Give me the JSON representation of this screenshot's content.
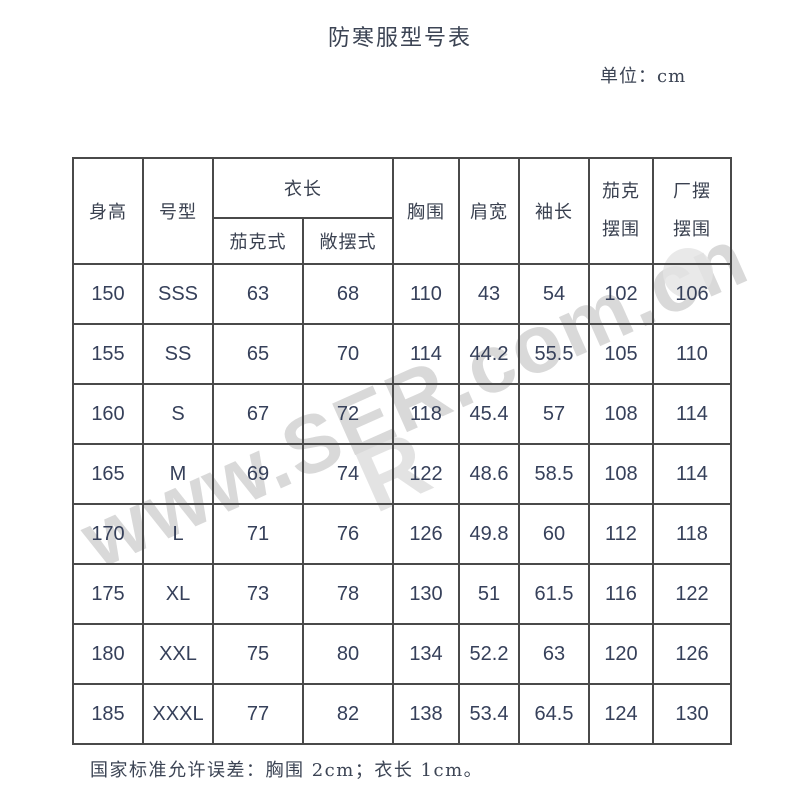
{
  "document": {
    "title": "防寒服型号表",
    "unit_note": "单位：cm",
    "footnote": "国家标准允许误差：胸围 2cm；衣长 1cm。"
  },
  "watermark": {
    "text": "www.SER.com.cn",
    "fragment": "R",
    "color": "#d3d3d3"
  },
  "table": {
    "headers": {
      "height": "身高",
      "model": "号型",
      "garment_length": "衣长",
      "jacket_style": "茄克式",
      "open_hem_style": "敞摆式",
      "chest": "胸围",
      "shoulder": "肩宽",
      "sleeve": "袖长",
      "jacket_hem": [
        "茄克",
        "摆围"
      ],
      "open_hem": [
        "厂摆",
        "摆围"
      ]
    },
    "rows": [
      [
        "150",
        "SSS",
        "63",
        "68",
        "110",
        "43",
        "54",
        "102",
        "106"
      ],
      [
        "155",
        "SS",
        "65",
        "70",
        "114",
        "44.2",
        "55.5",
        "105",
        "110"
      ],
      [
        "160",
        "S",
        "67",
        "72",
        "118",
        "45.4",
        "57",
        "108",
        "114"
      ],
      [
        "165",
        "M",
        "69",
        "74",
        "122",
        "48.6",
        "58.5",
        "108",
        "114"
      ],
      [
        "170",
        "L",
        "71",
        "76",
        "126",
        "49.8",
        "60",
        "112",
        "118"
      ],
      [
        "175",
        "XL",
        "73",
        "78",
        "130",
        "51",
        "61.5",
        "116",
        "122"
      ],
      [
        "180",
        "XXL",
        "75",
        "80",
        "134",
        "52.2",
        "63",
        "120",
        "126"
      ],
      [
        "185",
        "XXXL",
        "77",
        "82",
        "138",
        "53.4",
        "64.5",
        "124",
        "130"
      ]
    ]
  }
}
